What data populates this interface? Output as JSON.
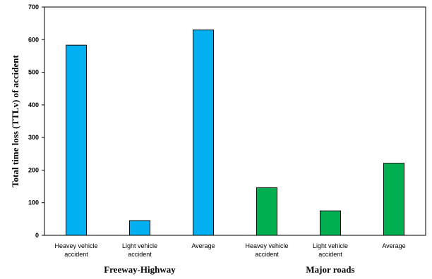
{
  "chart_data": {
    "type": "bar",
    "ylabel": "Total time loss (TTLv) of accident",
    "ylim": [
      0,
      700
    ],
    "yticks": [
      0,
      100,
      200,
      300,
      400,
      500,
      600,
      700
    ],
    "grid": false,
    "legend": "none",
    "categories": [
      [
        "Heavey vehicle",
        "accident"
      ],
      [
        "Light vehicle",
        "accident"
      ],
      [
        "Average"
      ],
      [
        "Heavey vehicle",
        "accident"
      ],
      [
        "Light vehicle",
        "accident"
      ],
      [
        "Average"
      ]
    ],
    "values": [
      583,
      45,
      630,
      146,
      75,
      221
    ],
    "bar_colors": [
      "#00B0F0",
      "#00B0F0",
      "#00B0F0",
      "#00B050",
      "#00B050",
      "#00B050"
    ],
    "groups": [
      {
        "label": "Freeway-Highway",
        "category_indices": [
          0,
          1,
          2
        ]
      },
      {
        "label": "Major roads",
        "category_indices": [
          3,
          4,
          5
        ]
      }
    ]
  }
}
